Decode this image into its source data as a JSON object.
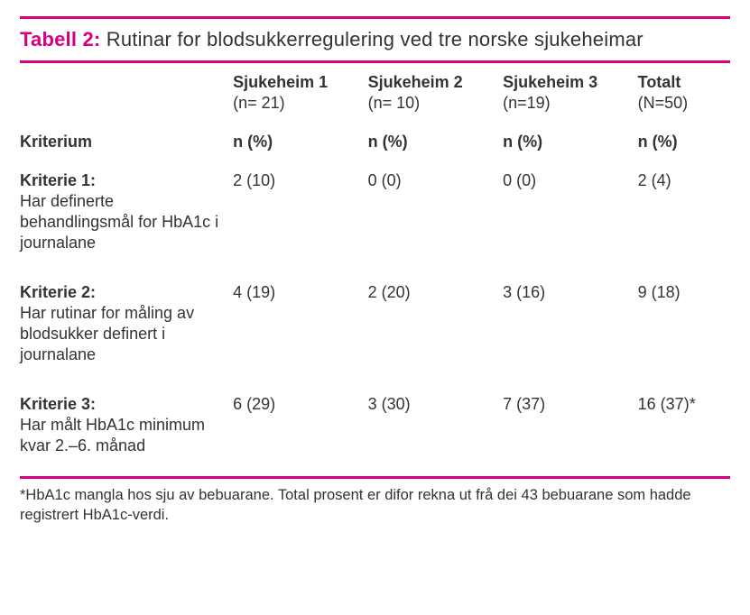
{
  "colors": {
    "accent": "#d6007f",
    "text": "#333333",
    "background": "#ffffff"
  },
  "title": {
    "label": "Tabell 2:",
    "text": " Rutinar for blodsukkerregulering ved tre norske sjukeheimar"
  },
  "columns": {
    "header_empty": "",
    "c1": {
      "name": "Sjukeheim 1",
      "n": "(n= 21)"
    },
    "c2": {
      "name": "Sjukeheim 2",
      "n": "(n= 10)"
    },
    "c3": {
      "name": "Sjukeheim 3",
      "n": "(n=19)"
    },
    "total": {
      "name": "Totalt",
      "n": "(N=50)"
    }
  },
  "subheader": {
    "label": "Kriterium",
    "c1": "n (%)",
    "c2": "n (%)",
    "c3": "n (%)",
    "total": "n (%)"
  },
  "rows": [
    {
      "lead": "Kriterie 1:",
      "desc": "Har definerte behandlingsmål for HbA1c i journalane",
      "c1": "2 (10)",
      "c2": "0 (0)",
      "c3": "0 (0)",
      "total": "2 (4)"
    },
    {
      "lead": "Kriterie 2:",
      "desc": "Har rutinar for måling av blodsukker definert i journalane",
      "c1": "4 (19)",
      "c2": "2 (20)",
      "c3": "3 (16)",
      "total": "9 (18)"
    },
    {
      "lead": "Kriterie 3:",
      "desc": "Har målt HbA1c minimum kvar 2.–6. månad",
      "c1": "6 (29)",
      "c2": "3 (30)",
      "c3": "7 (37)",
      "total": "16 (37)*"
    }
  ],
  "footnote": "*HbA1c mangla hos sju av bebuarane. Total prosent er difor rekna ut frå dei 43 bebuarane som hadde registrert HbA1c-verdi."
}
